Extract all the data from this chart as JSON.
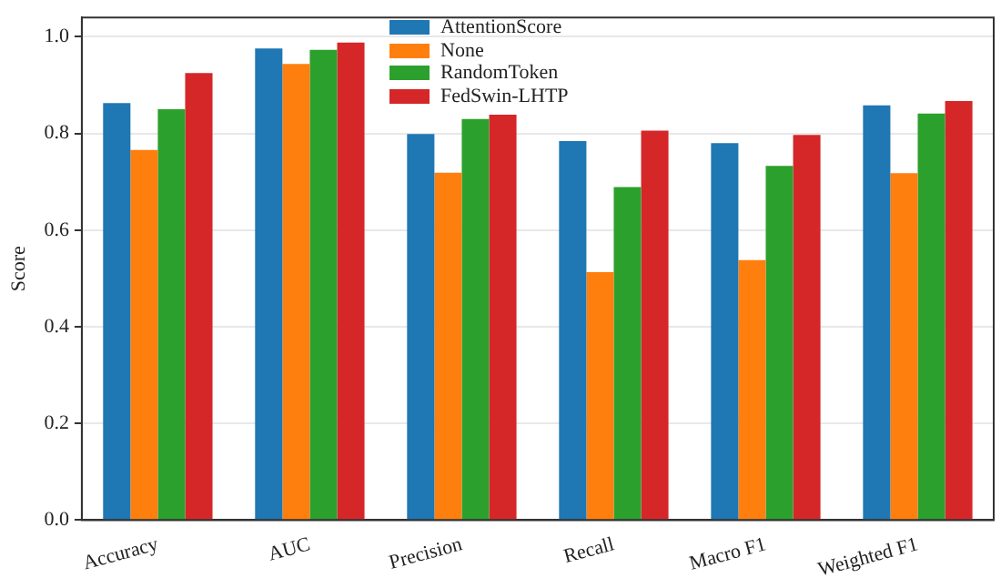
{
  "chart_data": {
    "type": "bar",
    "ylabel": "Score",
    "categories": [
      "Accuracy",
      "AUC",
      "Precision",
      "Recall",
      "Macro F1",
      "Weighted F1"
    ],
    "series": [
      {
        "name": "AttentionScore",
        "color": "#1f77b4",
        "values": [
          0.863,
          0.976,
          0.799,
          0.784,
          0.78,
          0.858
        ]
      },
      {
        "name": "None",
        "color": "#ff7f0e",
        "values": [
          0.766,
          0.944,
          0.719,
          0.513,
          0.538,
          0.718
        ]
      },
      {
        "name": "RandomToken",
        "color": "#2ca02c",
        "values": [
          0.85,
          0.973,
          0.83,
          0.689,
          0.733,
          0.841
        ]
      },
      {
        "name": "FedSwin-LHTP",
        "color": "#d62728",
        "values": [
          0.925,
          0.988,
          0.839,
          0.806,
          0.797,
          0.867
        ]
      }
    ],
    "ylim": [
      0,
      1.04
    ],
    "yticks": [
      {
        "value": 0,
        "label": "0.0"
      },
      {
        "value": 0.2,
        "label": "0.2"
      },
      {
        "value": 0.4,
        "label": "0.4"
      },
      {
        "value": 0.6,
        "label": "0.6"
      },
      {
        "value": 0.8,
        "label": "0.8"
      },
      {
        "value": 1,
        "label": "1.0"
      }
    ],
    "grid": "y",
    "legend": "top"
  }
}
